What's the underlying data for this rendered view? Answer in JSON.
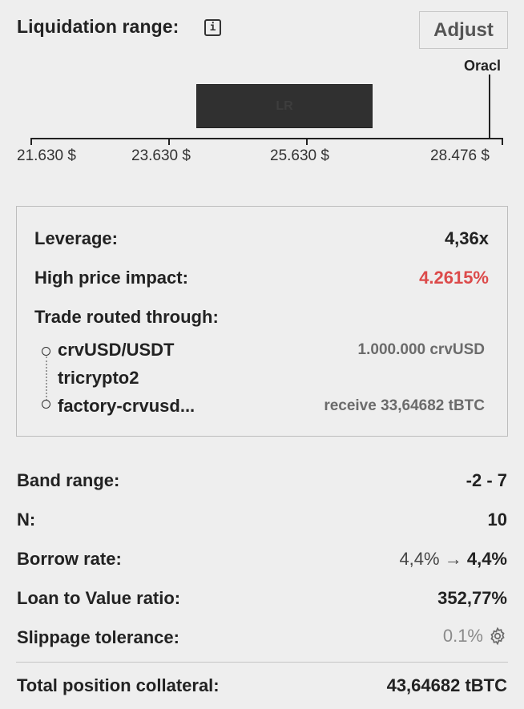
{
  "header": {
    "title": "Liquidation range:",
    "info_icon": "info-icon",
    "adjust_label": "Adjust"
  },
  "range_chart": {
    "oracle_label": "Oracl",
    "band_label": "LR",
    "ticks": [
      "21.630 $",
      "23.630 $",
      "25.630 $",
      "28.476 $"
    ],
    "colors": {
      "band": "#303030",
      "axis": "#222222"
    }
  },
  "details": {
    "leverage_label": "Leverage:",
    "leverage_value": "4,36x",
    "impact_label": "High price impact:",
    "impact_value": "4.2615%",
    "impact_color": "#dc4a4a",
    "route_label": "Trade routed through:",
    "route": [
      {
        "name": "crvUSD/USDT",
        "detail": "1.000.000 crvUSD"
      },
      {
        "name": "tricrypto2",
        "detail": ""
      },
      {
        "name": "factory-crvusd...",
        "detail": "receive 33,64682 tBTC"
      }
    ]
  },
  "summary": {
    "band_range_label": "Band range:",
    "band_range_value": "-2 - 7",
    "n_label": "N:",
    "n_value": "10",
    "borrow_rate_label": "Borrow rate:",
    "borrow_rate_from": "4,4%",
    "borrow_rate_arrow": "→",
    "borrow_rate_to": "4,4%",
    "ltv_label": "Loan to Value ratio:",
    "ltv_value": "352,77%",
    "slippage_label": "Slippage tolerance:",
    "slippage_value": "0.1%",
    "slippage_icon": "gear-icon",
    "total_label": "Total position collateral:",
    "total_value": "43,64682 tBTC"
  }
}
